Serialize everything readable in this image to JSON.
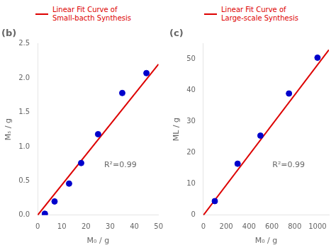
{
  "chart_data": [
    {
      "type": "scatter",
      "title": "(b)",
      "xlabel": "M₀ / g",
      "ylabel": "Mₛ / g",
      "xlim": [
        0,
        50
      ],
      "ylim": [
        0,
        2.5
      ],
      "xticks": [
        0,
        10,
        20,
        30,
        40,
        50
      ],
      "yticks": [
        {
          "value": 0.0,
          "label": "0.0"
        },
        0.5,
        {
          "value": 1.0,
          "label": "1.0"
        },
        1.5,
        {
          "value": 2.0,
          "label": "2.0"
        },
        2.5
      ],
      "grid": false,
      "legend": "top",
      "annotations": [
        "R²=0.99"
      ],
      "series": [
        {
          "name": "Linear Fit Curve of\nSmall-bacth Synthesis",
          "type": "line",
          "color": "#dd0000",
          "x": [
            0,
            50
          ],
          "values": [
            0.0,
            2.2
          ]
        },
        {
          "type": "scatter",
          "color": "#0000cc",
          "x": [
            3,
            7,
            13,
            18,
            25,
            35,
            45
          ],
          "values": [
            0.02,
            0.2,
            0.46,
            0.76,
            1.18,
            1.78,
            2.07
          ]
        }
      ]
    },
    {
      "type": "scatter",
      "title": "(c)",
      "xlabel": "M₀ / g",
      "ylabel": "ML / g",
      "xlim": [
        0,
        1100
      ],
      "ylim": [
        0,
        55
      ],
      "xticks": [
        0,
        200,
        400,
        600,
        800,
        1000
      ],
      "yticks": [
        0,
        10,
        20,
        30,
        40,
        50
      ],
      "grid": false,
      "legend": "top",
      "annotations": [
        "R²=0.99"
      ],
      "series": [
        {
          "name": "Linear Fit Curve of\nLarge-scale Synthesis",
          "type": "line",
          "color": "#dd0000",
          "x": [
            0,
            1100
          ],
          "values": [
            0.0,
            53.0
          ]
        },
        {
          "type": "scatter",
          "color": "#0000cc",
          "x": [
            100,
            300,
            500,
            750,
            1000
          ],
          "values": [
            4.5,
            16.5,
            25.5,
            39.0,
            50.5
          ]
        }
      ]
    }
  ]
}
